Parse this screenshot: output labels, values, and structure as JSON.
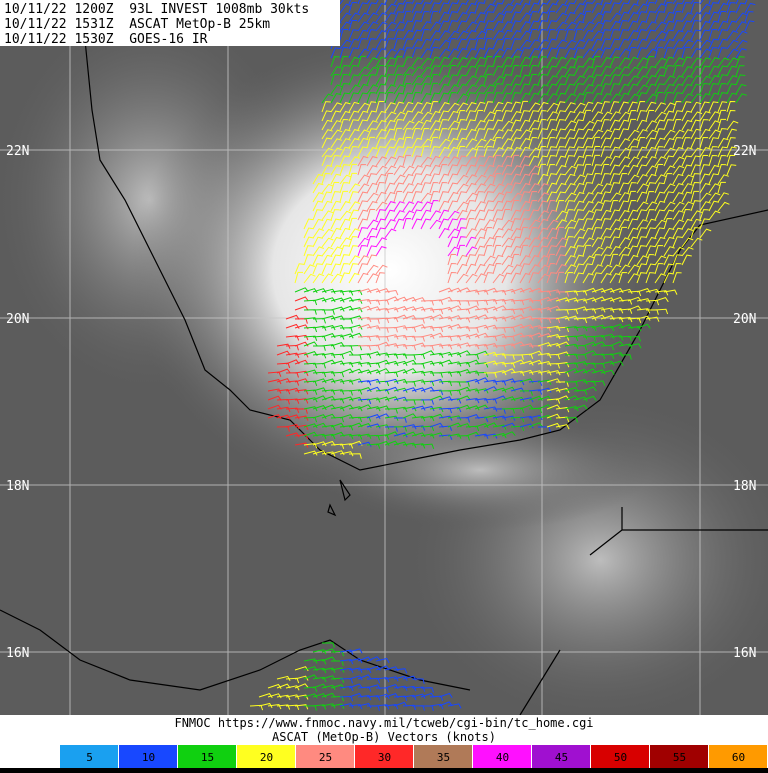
{
  "header": {
    "lines": [
      "10/11/22 1200Z  93L INVEST 1008mb 30kts",
      "10/11/22 1531Z  ASCAT MetOp-B 25km",
      "10/11/22 1530Z  GOES-16 IR"
    ]
  },
  "map": {
    "latitude_labels": [
      "22N",
      "20N",
      "18N",
      "16N"
    ]
  },
  "footer": {
    "source": "FNMOC https://www.fnmoc.navy.mil/tcweb/cgi-bin/tc_home.cgi",
    "caption": "ASCAT (MetOp-B) Vectors (knots)"
  },
  "color_bar": {
    "speeds": [
      5,
      10,
      15,
      20,
      25,
      30,
      35,
      40,
      45,
      50,
      55,
      60
    ],
    "colors": [
      "#1aa0f0",
      "#1848ff",
      "#10d010",
      "#ffff20",
      "#ff8a80",
      "#ff2828",
      "#b07a58",
      "#ff10ff",
      "#a010d0",
      "#d80000",
      "#a00000",
      "#ff9a00"
    ]
  }
}
